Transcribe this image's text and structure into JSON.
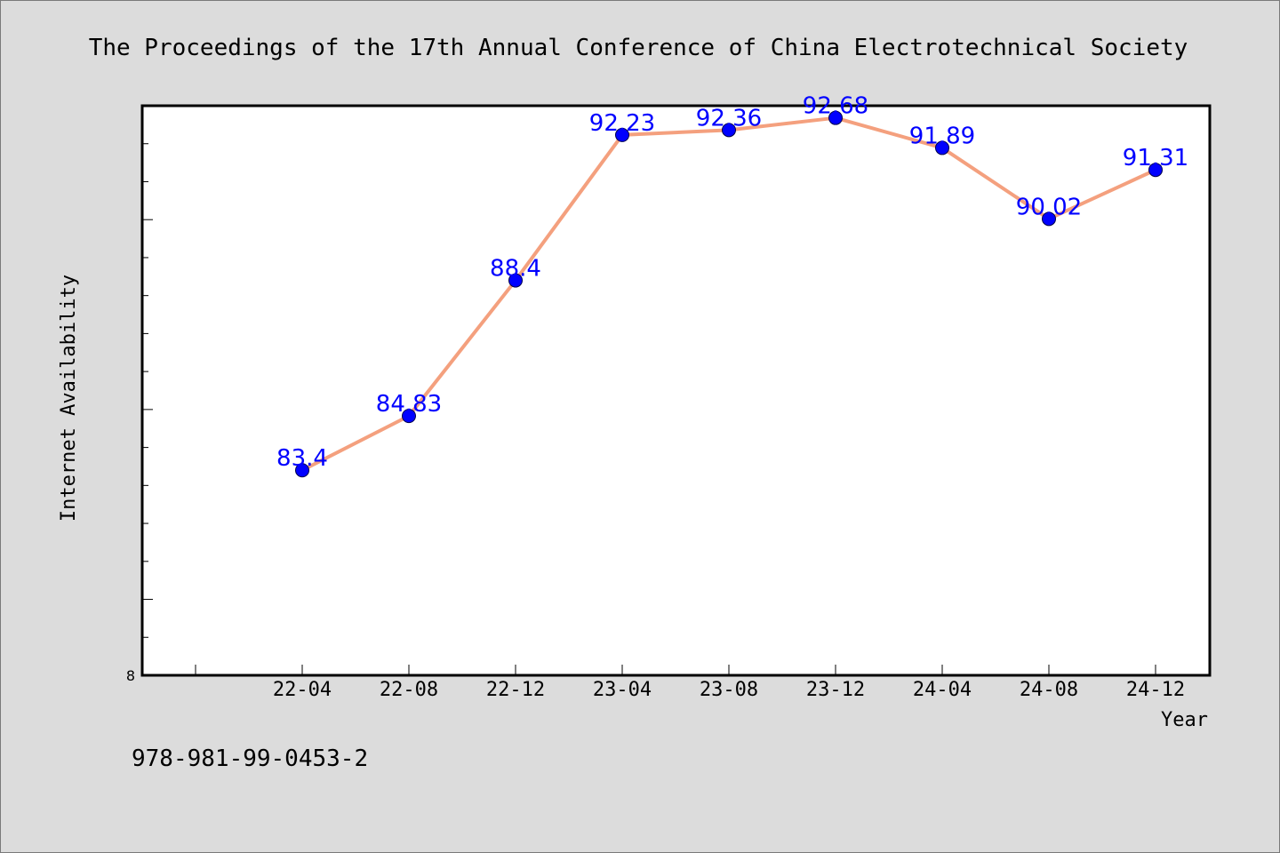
{
  "chart_data": {
    "type": "line",
    "title": "The Proceedings of the 17th Annual Conference of China Electrotechnical Society",
    "xlabel": "Year",
    "ylabel": "Internet Availability",
    "categories": [
      "22-04",
      "22-08",
      "22-12",
      "23-04",
      "23-08",
      "23-12",
      "24-04",
      "24-08",
      "24-12"
    ],
    "series": [
      {
        "values": [
          83.4,
          84.83,
          88.4,
          92.23,
          92.36,
          92.68,
          91.89,
          90.02,
          91.31
        ]
      }
    ],
    "data_labels": [
      "83.4",
      "84.83",
      "88.4",
      "92.23",
      "92.36",
      "92.68",
      "91.89",
      "90.02",
      "91.31"
    ],
    "y_tick_label": "8",
    "ylim": [
      78,
      93
    ],
    "grid": false,
    "legend": "none",
    "colors": {
      "line": "#f4a07e",
      "marker": "#0000ff",
      "label": "#0000ff",
      "background": "#dcdcdc",
      "plot_background": "#ffffff"
    }
  },
  "footer_text": "978-981-99-0453-2"
}
